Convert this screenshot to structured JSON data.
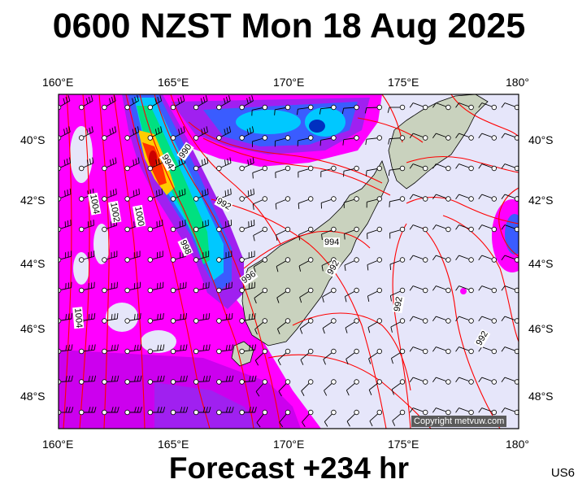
{
  "title": "0600 NZST Mon 18 Aug 2025",
  "footer": "Forecast +234 hr",
  "model_tag": "US6",
  "copyright": "Copyright metvuw.com",
  "axes": {
    "lon_labels": [
      "160°E",
      "165°E",
      "170°E",
      "175°E",
      "180°"
    ],
    "lat_labels": [
      "40°S",
      "42°S",
      "44°S",
      "46°S",
      "48°S"
    ]
  },
  "isobars": [
    {
      "label": "990"
    },
    {
      "label": "994"
    },
    {
      "label": "992"
    },
    {
      "label": "1004"
    },
    {
      "label": "1002"
    },
    {
      "label": "1000"
    },
    {
      "label": "998"
    },
    {
      "label": "996"
    },
    {
      "label": "994"
    },
    {
      "label": "992"
    },
    {
      "label": "992"
    },
    {
      "label": "992"
    },
    {
      "label": "1004"
    }
  ],
  "colors": {
    "background": "#e6e6fa",
    "isobar": "#ff0000",
    "land": "#c9d2be",
    "rain_light": "#ff00ff",
    "rain_mid": "#8a2be2",
    "rain_heavy": "#1e3cff",
    "rain_extreme": "#ffcc00"
  }
}
